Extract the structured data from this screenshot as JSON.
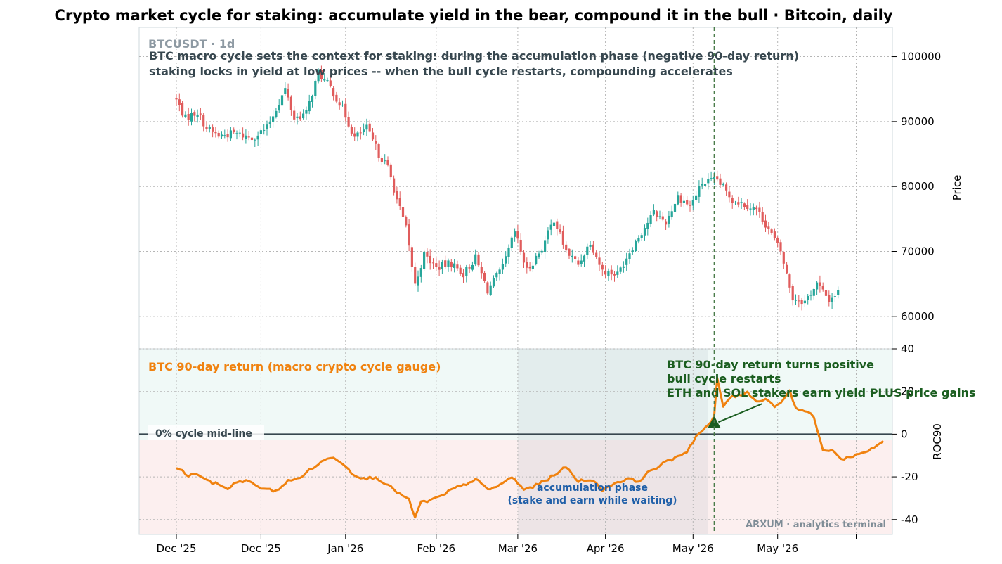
{
  "title": "Crypto market cycle for staking: accumulate yield in the bear, compound it in the bull  ·  Bitcoin, daily",
  "colors": {
    "up": "#26a69a",
    "down": "#e05c5c",
    "roc_line": "#f0820f",
    "annotation_green": "#1b5e20",
    "annotation_blue": "#1f5fa8",
    "header_gray": "#8e9aa3",
    "subtitle": "#37474f",
    "watermark": "#7e8c96",
    "pos_zone": "#eaf6f4",
    "neg_zone": "#fbe9e9"
  },
  "chart_data": [
    {
      "type": "candlestick",
      "symbol_label": "BTCUSDT · 1d",
      "subtitle_lines": [
        "BTC macro cycle sets the context for staking: during the accumulation phase (negative 90-day return)",
        "staking locks in yield at low prices -- when the bull cycle restarts, compounding accelerates"
      ],
      "ylabel": "Price",
      "ylim": [
        55000,
        104500
      ],
      "yticks": [
        60000,
        70000,
        80000,
        90000,
        100000
      ],
      "grid": true,
      "date_range": [
        "2025-11-21",
        "2026-05-26"
      ],
      "xtick_labels": [
        "Dec '25",
        "Dec '25",
        "Jan '26",
        "Feb '26",
        "Mar '26",
        "Apr '26",
        "May '26",
        "May '26",
        ""
      ],
      "close_anchors": [
        [
          0,
          93300
        ],
        [
          3,
          90500
        ],
        [
          7,
          91500
        ],
        [
          10,
          89000
        ],
        [
          14,
          87800
        ],
        [
          19,
          88200
        ],
        [
          25,
          87500
        ],
        [
          30,
          89000
        ],
        [
          36,
          95000
        ],
        [
          39,
          90500
        ],
        [
          43,
          91300
        ],
        [
          47,
          97500
        ],
        [
          51,
          95200
        ],
        [
          55,
          92000
        ],
        [
          59,
          87500
        ],
        [
          63,
          89000
        ],
        [
          67,
          85000
        ],
        [
          70,
          83000
        ],
        [
          73,
          78000
        ],
        [
          76,
          73500
        ],
        [
          79,
          64800
        ],
        [
          82,
          69500
        ],
        [
          86,
          67500
        ],
        [
          91,
          68200
        ],
        [
          95,
          66500
        ],
        [
          99,
          69000
        ],
        [
          103,
          64000
        ],
        [
          108,
          67500
        ],
        [
          112,
          73000
        ],
        [
          116,
          67000
        ],
        [
          121,
          70500
        ],
        [
          125,
          75000
        ],
        [
          129,
          70000
        ],
        [
          133,
          68000
        ],
        [
          137,
          71500
        ],
        [
          141,
          67000
        ],
        [
          146,
          66500
        ],
        [
          150,
          70000
        ],
        [
          154,
          73000
        ],
        [
          158,
          76000
        ],
        [
          162,
          74500
        ],
        [
          166,
          78500
        ],
        [
          170,
          77000
        ],
        [
          174,
          80500
        ],
        [
          179,
          81000
        ],
        [
          184,
          78000
        ],
        [
          188,
          77300
        ],
        [
          192,
          76500
        ],
        [
          196,
          73500
        ],
        [
          200,
          70000
        ],
        [
          204,
          62800
        ],
        [
          208,
          62300
        ],
        [
          212,
          65000
        ],
        [
          216,
          62500
        ],
        [
          219,
          63800
        ]
      ]
    },
    {
      "type": "line",
      "series_name": "BTC 90-day return (macro crypto cycle gauge)",
      "ylabel": "ROC90",
      "ylim": [
        -47,
        40
      ],
      "yticks": [
        -40,
        -20,
        0,
        20,
        40
      ],
      "midline_label": "0%  cycle mid-line",
      "accumulation_window": [
        113,
        176
      ],
      "signal_index": 178,
      "roc_anchors": [
        [
          0,
          -15.5
        ],
        [
          4,
          -19.5
        ],
        [
          7,
          -18.5
        ],
        [
          11,
          -22.5
        ],
        [
          14,
          -23.5
        ],
        [
          17,
          -25.5
        ],
        [
          20,
          -22.5
        ],
        [
          23,
          -21.5
        ],
        [
          26,
          -24
        ],
        [
          30,
          -26
        ],
        [
          33,
          -26.5
        ],
        [
          37,
          -22
        ],
        [
          40,
          -21
        ],
        [
          44,
          -17
        ],
        [
          48,
          -13
        ],
        [
          52,
          -10.5
        ],
        [
          55,
          -13.5
        ],
        [
          58,
          -18
        ],
        [
          62,
          -21
        ],
        [
          66,
          -20
        ],
        [
          70,
          -24
        ],
        [
          74,
          -28
        ],
        [
          77,
          -31
        ],
        [
          79,
          -39
        ],
        [
          81,
          -32
        ],
        [
          84,
          -31
        ],
        [
          88,
          -29
        ],
        [
          91,
          -26
        ],
        [
          95,
          -24
        ],
        [
          99,
          -21
        ],
        [
          103,
          -26
        ],
        [
          107,
          -24
        ],
        [
          111,
          -20
        ],
        [
          115,
          -26
        ],
        [
          119,
          -24
        ],
        [
          123,
          -21
        ],
        [
          126,
          -18
        ],
        [
          129,
          -15.5
        ],
        [
          133,
          -22
        ],
        [
          137,
          -21
        ],
        [
          141,
          -26
        ],
        [
          145,
          -23
        ],
        [
          149,
          -21
        ],
        [
          153,
          -22
        ],
        [
          157,
          -17
        ],
        [
          161,
          -14
        ],
        [
          165,
          -11
        ],
        [
          169,
          -8
        ],
        [
          172,
          -1
        ],
        [
          176,
          4
        ],
        [
          178,
          8
        ],
        [
          179,
          26
        ],
        [
          181,
          13
        ],
        [
          183,
          17
        ],
        [
          186,
          18
        ],
        [
          189,
          20
        ],
        [
          192,
          15
        ],
        [
          195,
          17
        ],
        [
          198,
          13
        ],
        [
          201,
          16
        ],
        [
          203,
          21
        ],
        [
          205,
          12
        ],
        [
          208,
          11
        ],
        [
          211,
          8
        ],
        [
          214,
          -8
        ],
        [
          217,
          -7
        ],
        [
          220,
          -12
        ],
        [
          224,
          -10
        ],
        [
          227,
          -9
        ],
        [
          231,
          -6
        ],
        [
          234,
          -3
        ]
      ]
    }
  ],
  "annotations": {
    "signal_text": [
      "BTC 90-day return turns positive",
      "bull cycle restarts",
      "ETH and SOL stakers earn yield PLUS price gains"
    ],
    "accumulation_text": [
      "accumulation phase",
      "(stake and earn while waiting)"
    ],
    "watermark": "ARXUM · analytics terminal"
  }
}
